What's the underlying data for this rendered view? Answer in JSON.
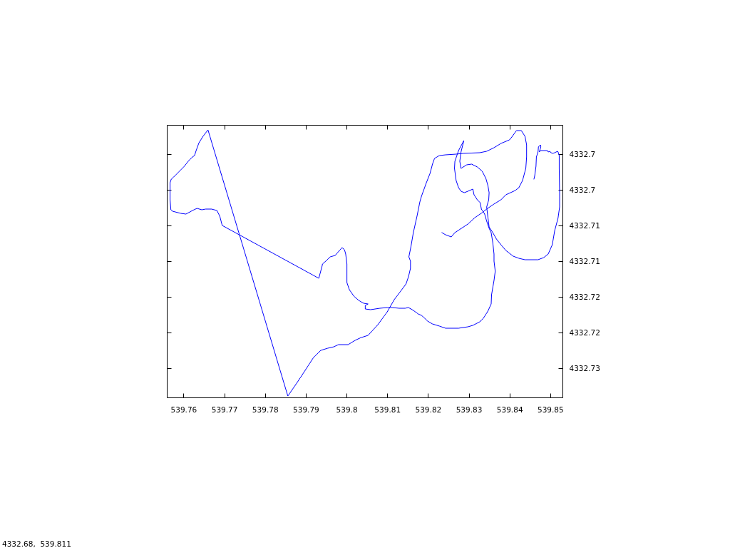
{
  "chart_data": {
    "type": "line",
    "xlim": [
      539.7559,
      539.853
    ],
    "xticks": [
      539.76,
      539.77,
      539.78,
      539.79,
      539.8,
      539.81,
      539.82,
      539.83,
      539.84,
      539.85
    ],
    "y2lim": [
      4332.7341,
      4332.6959
    ],
    "y2ticks": [
      4332.7,
      {
        "value": 4332.705,
        "label": "4332.7"
      },
      4332.71,
      {
        "value": 4332.715,
        "label": "4332.71"
      },
      4332.72,
      {
        "value": 4332.725,
        "label": "4332.72"
      },
      4332.73
    ],
    "annotations": [
      "4332.68,  539.811"
    ],
    "series": [
      {
        "axis": "y2",
        "color": "#0000ff",
        "x": [
          539.8234,
          539.8243,
          539.8257,
          539.8266,
          539.8298,
          539.8315,
          539.8333,
          539.8344,
          539.8359,
          539.8379,
          539.8391,
          539.8414,
          539.8423,
          539.8432,
          539.844,
          539.8442,
          539.8442,
          539.8438,
          539.8429,
          539.8417,
          539.8407,
          539.84,
          539.8379,
          539.8362,
          539.8344,
          539.8327,
          539.8286,
          539.8269,
          539.8243,
          539.8228,
          539.8216,
          539.8211,
          539.8205,
          539.8196,
          539.8184,
          539.818,
          539.8173,
          539.8164,
          539.8158,
          539.8153,
          539.8157,
          539.8157,
          539.8152,
          539.8146,
          539.8129,
          539.8117,
          539.81,
          539.8077,
          539.8053,
          539.8042,
          539.8036,
          539.8021,
          539.8004,
          539.798,
          539.7969,
          539.7954,
          539.7937,
          539.7919,
          539.7902,
          539.7879,
          539.7856,
          539.766,
          539.7648,
          539.7638,
          539.7631,
          539.7627,
          539.7622,
          539.7613,
          539.7602,
          539.7576,
          539.757,
          539.7567,
          539.7567,
          539.7569,
          539.7573,
          539.7593,
          539.7606,
          539.7622,
          539.7633,
          539.7645,
          539.7654,
          539.7669,
          539.7682,
          539.7689,
          539.7695,
          539.7932,
          539.794,
          539.7941,
          539.7951,
          539.796,
          539.7972,
          539.7989,
          539.7995,
          539.7998,
          539.8001,
          539.8001,
          539.8007,
          539.8018,
          539.803,
          539.8042,
          539.8053,
          539.8046,
          539.8046,
          539.8059,
          539.8082,
          539.81,
          539.8112,
          539.8129,
          539.8144,
          539.8152,
          539.8164,
          539.8176,
          539.8184,
          539.819,
          539.8199,
          539.8211,
          539.8228,
          539.8243,
          539.8275,
          539.8298,
          539.831,
          539.8327,
          539.8336,
          539.8347,
          539.8355,
          539.8356,
          539.8359,
          539.8362,
          539.8365,
          539.8362,
          539.8362,
          539.8359,
          539.8355,
          539.835,
          539.8344,
          539.8339,
          539.8331,
          539.8328,
          539.8321,
          539.8313,
          539.831,
          539.8298,
          539.8289,
          539.8281,
          539.8275,
          539.8269,
          539.8265,
          539.8266,
          539.8275,
          539.8288,
          539.8281,
          539.8278,
          539.8281,
          539.8295,
          539.8307,
          539.8321,
          539.8333,
          539.8342,
          539.8347,
          539.835,
          539.8349,
          539.8344,
          539.8346,
          539.835,
          539.8359,
          539.8368,
          539.8379,
          539.8391,
          539.8409,
          539.8423,
          539.8438,
          539.847,
          539.8484,
          539.8495,
          539.8505,
          539.8511,
          539.8519,
          539.8523,
          539.8523,
          539.8522,
          539.8522,
          539.852,
          539.8518,
          539.8511,
          539.8506,
          539.8502,
          539.8499,
          539.8495,
          539.8493,
          539.8476,
          539.8473,
          539.8477,
          539.8476,
          539.8471,
          539.847,
          539.8466,
          539.8465,
          539.8462,
          539.846
        ],
        "values": [
          4332.711,
          4332.7113,
          4332.7116,
          4332.711,
          4332.7098,
          4332.7089,
          4332.7082,
          4332.7077,
          4332.7071,
          4332.7064,
          4332.7057,
          4332.7051,
          4332.7047,
          4332.7037,
          4332.702,
          4332.7004,
          4332.6987,
          4332.6975,
          4332.6967,
          4332.6967,
          4332.6975,
          4332.698,
          4332.6985,
          4332.6991,
          4332.6996,
          4332.6998,
          4332.6999,
          4332.7,
          4332.7001,
          4332.7002,
          4332.7006,
          4332.7014,
          4332.7027,
          4332.704,
          4332.7059,
          4332.7067,
          4332.7087,
          4332.711,
          4332.713,
          4332.7144,
          4332.715,
          4332.716,
          4332.7172,
          4332.7182,
          4332.7195,
          4332.7204,
          4332.7221,
          4332.7239,
          4332.7254,
          4332.7256,
          4332.7257,
          4332.7261,
          4332.7267,
          4332.7267,
          4332.727,
          4332.7272,
          4332.7275,
          4332.7285,
          4332.73,
          4332.732,
          4332.7339,
          4332.6966,
          4332.6975,
          4332.6984,
          4332.6995,
          4332.7002,
          4332.7004,
          4332.7009,
          4332.7017,
          4332.7032,
          4332.7035,
          4332.704,
          4332.7064,
          4332.7078,
          4332.708,
          4332.7083,
          4332.7084,
          4332.7079,
          4332.7076,
          4332.7078,
          4332.7077,
          4332.7077,
          4332.7079,
          4332.7087,
          4332.71,
          4332.7174,
          4332.7157,
          4332.7154,
          4332.7149,
          4332.7144,
          4332.7142,
          4332.7131,
          4332.7134,
          4332.714,
          4332.7154,
          4332.718,
          4332.719,
          4332.7199,
          4332.7205,
          4332.7209,
          4332.721,
          4332.7212,
          4332.7217,
          4332.7218,
          4332.7216,
          4332.7215,
          4332.7215,
          4332.7216,
          4332.7216,
          4332.7215,
          4332.7219,
          4332.7224,
          4332.7226,
          4332.7229,
          4332.7234,
          4332.7238,
          4332.7241,
          4332.7244,
          4332.7244,
          4332.7242,
          4332.724,
          4332.7235,
          4332.723,
          4332.722,
          4332.721,
          4332.7197,
          4332.7187,
          4332.7177,
          4332.7164,
          4332.715,
          4332.714,
          4332.7124,
          4332.711,
          4332.7104,
          4332.7094,
          4332.7084,
          4332.7077,
          4332.7068,
          4332.7064,
          4332.7057,
          4332.7049,
          4332.7052,
          4332.7054,
          4332.7052,
          4332.7047,
          4332.7037,
          4332.702,
          4332.701,
          4332.6995,
          4332.6981,
          4332.6997,
          4332.701,
          4332.702,
          4332.7015,
          4332.7014,
          4332.7018,
          4332.7024,
          4332.7034,
          4332.7044,
          4332.7054,
          4332.7064,
          4332.7074,
          4332.7084,
          4332.7102,
          4332.711,
          4332.7119,
          4332.7127,
          4332.7135,
          4332.7143,
          4332.7146,
          4332.7148,
          4332.7148,
          4332.7145,
          4332.714,
          4332.7127,
          4332.7107,
          4332.709,
          4332.7074,
          4332.7054,
          4332.702,
          4332.7002,
          4332.6998,
          4332.6996,
          4332.6998,
          4332.6999,
          4332.6998,
          4332.6996,
          4332.6997,
          4332.6995,
          4332.6995,
          4332.6997,
          4332.699,
          4332.6987,
          4332.699,
          4332.6997,
          4332.7004,
          4332.7017,
          4332.703,
          4332.7035
        ]
      }
    ]
  }
}
